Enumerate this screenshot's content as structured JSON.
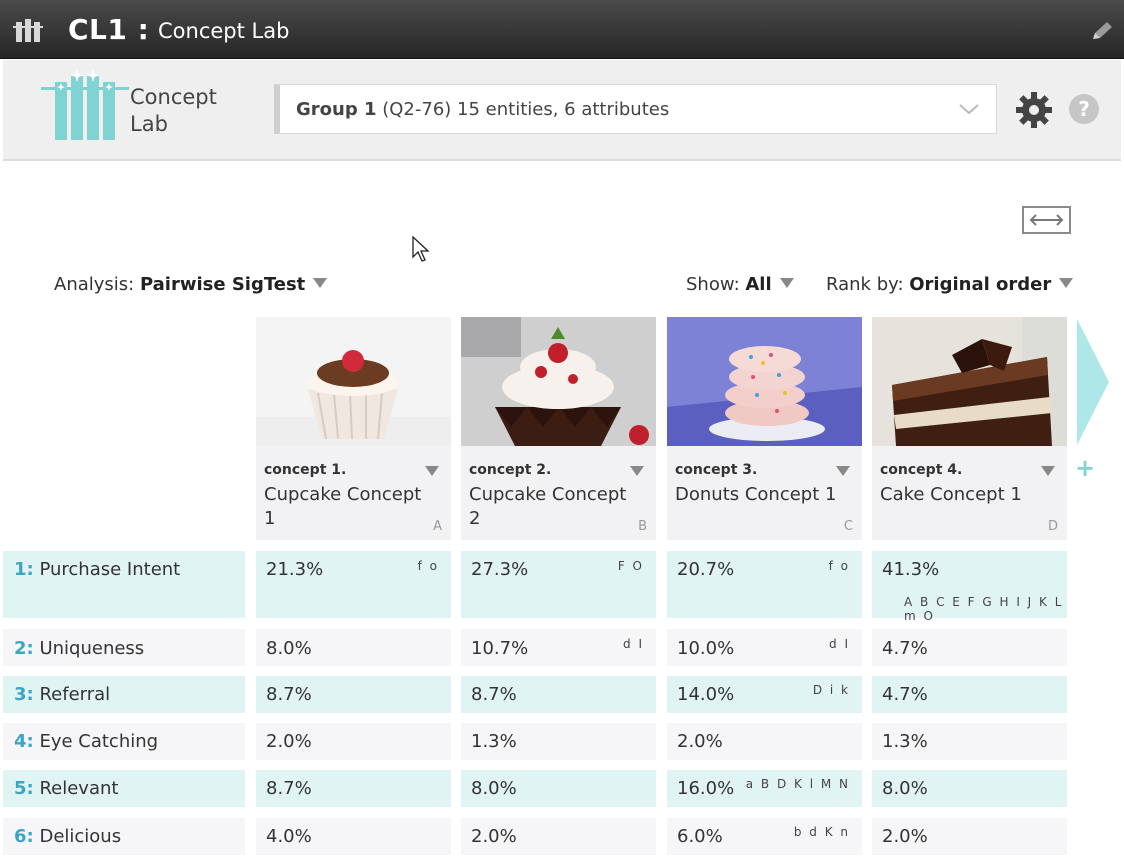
{
  "app": {
    "code": "CL1 :",
    "title": "Concept Lab",
    "icons": [
      "app-icon",
      "pencil-icon"
    ]
  },
  "header": {
    "logo_line1": "Concept",
    "logo_line2": "Lab",
    "group_bold": "Group 1",
    "group_rest": " (Q2-76) 15 entities, 6 attributes",
    "icons": [
      "chevron-down-icon",
      "gear-icon",
      "help-icon"
    ],
    "help_glyph": "?"
  },
  "controls": {
    "analysis_label": "Analysis: ",
    "analysis_value": "Pairwise SigTest",
    "show_label": "Show: ",
    "show_value": "All",
    "rank_label": "Rank by: ",
    "rank_value": "Original order"
  },
  "concepts": [
    {
      "num": "concept 1.",
      "name": "Cupcake Concept 1",
      "letter": "A"
    },
    {
      "num": "concept 2.",
      "name": "Cupcake Concept 2",
      "letter": "B"
    },
    {
      "num": "concept 3.",
      "name": "Donuts Concept 1",
      "letter": "C"
    },
    {
      "num": "concept 4.",
      "name": "Cake Concept 1",
      "letter": "D"
    }
  ],
  "add_glyph": "+",
  "rows": [
    {
      "num": "1:",
      "label": " Purchase Intent",
      "cells": [
        {
          "value": "21.3%",
          "sig": "f o"
        },
        {
          "value": "27.3%",
          "sig": "F O"
        },
        {
          "value": "20.7%",
          "sig": "f o"
        },
        {
          "value": "41.3%",
          "sig": "A B C E F G H I J K L m O"
        }
      ]
    },
    {
      "num": "2:",
      "label": " Uniqueness",
      "cells": [
        {
          "value": "8.0%",
          "sig": ""
        },
        {
          "value": "10.7%",
          "sig": "d I"
        },
        {
          "value": "10.0%",
          "sig": "d I"
        },
        {
          "value": "4.7%",
          "sig": ""
        }
      ]
    },
    {
      "num": "3:",
      "label": " Referral",
      "cells": [
        {
          "value": "8.7%",
          "sig": ""
        },
        {
          "value": "8.7%",
          "sig": ""
        },
        {
          "value": "14.0%",
          "sig": "D i k"
        },
        {
          "value": "4.7%",
          "sig": ""
        }
      ]
    },
    {
      "num": "4:",
      "label": " Eye Catching",
      "cells": [
        {
          "value": "2.0%",
          "sig": ""
        },
        {
          "value": "1.3%",
          "sig": ""
        },
        {
          "value": "2.0%",
          "sig": ""
        },
        {
          "value": "1.3%",
          "sig": ""
        }
      ]
    },
    {
      "num": "5:",
      "label": " Relevant",
      "cells": [
        {
          "value": "8.7%",
          "sig": ""
        },
        {
          "value": "8.0%",
          "sig": ""
        },
        {
          "value": "16.0%",
          "sig": "a B D K l M N"
        },
        {
          "value": "8.0%",
          "sig": ""
        }
      ]
    },
    {
      "num": "6:",
      "label": " Delicious",
      "cells": [
        {
          "value": "4.0%",
          "sig": ""
        },
        {
          "value": "2.0%",
          "sig": ""
        },
        {
          "value": "6.0%",
          "sig": "b d K n"
        },
        {
          "value": "2.0%",
          "sig": ""
        }
      ]
    }
  ],
  "colors": {
    "accent": "#3aa6c4",
    "highlight_row": "#e1f4f4",
    "logo": "#7fd3d3"
  }
}
